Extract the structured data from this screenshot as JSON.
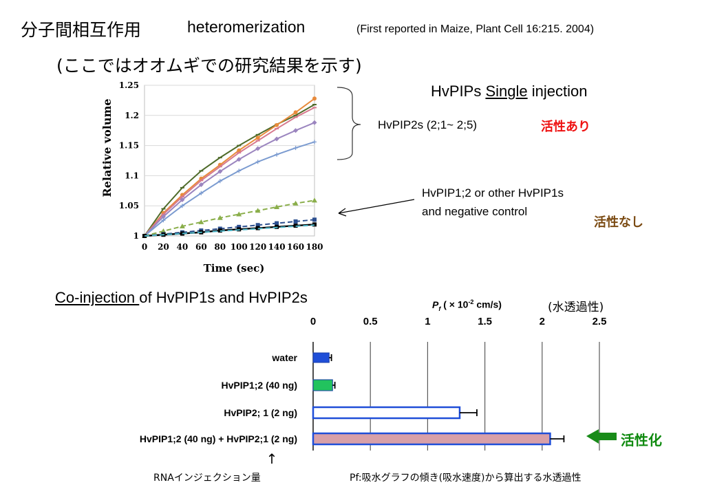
{
  "header": {
    "title_ja": "分子間相互作用",
    "title_en": "heteromerization",
    "reference": "(First reported in Maize, Plant Cell 16:215. 2004)",
    "subtitle": "(ここではオオムギでの研究結果を示す)"
  },
  "annotations": {
    "single_prefix": "HvPIPs ",
    "single_underlined": "Single",
    "single_suffix": " injection",
    "pip2_group": "HvPIP2s (2;1~ 2;5)",
    "active": "活性あり",
    "pip1_line1": "HvPIP1;2  or  other HvPIP1s",
    "pip1_line2": "and negative control",
    "inactive": "活性なし",
    "co_underlined": "Co-injection ",
    "co_suffix": "of HvPIP1s and HvPIP2s",
    "pf_label": "P",
    "pf_sub": "f",
    "pf_unit": "( × 10",
    "pf_exp": "-2",
    "pf_unit_end": " cm/s)",
    "pf_unit_ja": "(水透過性)",
    "activation": "活性化",
    "rna_note": "RNAインジェクション量",
    "pf_note": "Pf:吸水グラフの傾き(吸水速度)から算出する水透過性",
    "up_arrow": "↑"
  },
  "colors": {
    "dark_green": "#4f6b2a",
    "orange": "#e88b3c",
    "pink": "#d77a8e",
    "purple": "#9b85bf",
    "light_blue": "#7b9bd0",
    "olive_dash": "#8aae4a",
    "navy_dash": "#2c4f8f",
    "black": "#000000",
    "cyan_dash": "#4db6c8",
    "bar_blue": "#1f4ed8",
    "bar_green": "#22c35e",
    "bar_pink": "#d8a0a8",
    "arrow_green": "#198b19"
  },
  "chart_data": [
    {
      "type": "line",
      "xlabel": "Time (sec)",
      "ylabel": "Relative volume",
      "x": [
        0,
        20,
        40,
        60,
        80,
        100,
        120,
        140,
        160,
        180
      ],
      "xlim": [
        0,
        180
      ],
      "ylim": [
        1,
        1.25
      ],
      "x_ticks": [
        "0",
        "20",
        "40",
        "60",
        "80",
        "100",
        "120",
        "140",
        "160",
        "180"
      ],
      "y_ticks": [
        "1",
        "1.05",
        "1.1",
        "1.15",
        "1.2",
        "1.25"
      ],
      "y_tick_values": [
        1,
        1.05,
        1.1,
        1.15,
        1.2,
        1.25
      ],
      "series": [
        {
          "color_key": "dark_green",
          "marker": "dash",
          "style": "solid",
          "values": [
            1.0,
            1.045,
            1.08,
            1.108,
            1.13,
            1.15,
            1.168,
            1.185,
            1.2,
            1.218
          ]
        },
        {
          "color_key": "orange",
          "marker": "circle",
          "style": "solid",
          "values": [
            1.0,
            1.038,
            1.068,
            1.095,
            1.118,
            1.142,
            1.163,
            1.184,
            1.205,
            1.228
          ]
        },
        {
          "color_key": "pink",
          "marker": "dash",
          "style": "solid",
          "values": [
            1.0,
            1.036,
            1.065,
            1.092,
            1.115,
            1.138,
            1.158,
            1.178,
            1.197,
            1.213
          ]
        },
        {
          "color_key": "purple",
          "marker": "diamond",
          "style": "solid",
          "values": [
            1.0,
            1.032,
            1.06,
            1.085,
            1.107,
            1.127,
            1.145,
            1.161,
            1.175,
            1.188
          ]
        },
        {
          "color_key": "light_blue",
          "marker": "plus",
          "style": "solid",
          "values": [
            1.0,
            1.026,
            1.05,
            1.071,
            1.091,
            1.108,
            1.123,
            1.135,
            1.146,
            1.156
          ]
        },
        {
          "color_key": "olive_dash",
          "marker": "triangle",
          "style": "dashed",
          "values": [
            1.0,
            1.008,
            1.016,
            1.023,
            1.03,
            1.036,
            1.042,
            1.048,
            1.054,
            1.059
          ]
        },
        {
          "color_key": "navy_dash",
          "marker": "square",
          "style": "dashed",
          "values": [
            1.0,
            1.003,
            1.006,
            1.009,
            1.012,
            1.015,
            1.018,
            1.021,
            1.024,
            1.027
          ]
        },
        {
          "color_key": "black",
          "marker": "square",
          "style": "solid",
          "values": [
            1.0,
            1.002,
            1.004,
            1.006,
            1.009,
            1.011,
            1.013,
            1.015,
            1.017,
            1.019
          ]
        },
        {
          "color_key": "cyan_dash",
          "marker": "none",
          "style": "dashed",
          "values": [
            1.0,
            1.002,
            1.004,
            1.006,
            1.008,
            1.01,
            1.012,
            1.014,
            1.016,
            1.018
          ]
        }
      ]
    },
    {
      "type": "bar",
      "orientation": "horizontal",
      "categories": [
        "water",
        "HvPIP1;2 (40 ng)",
        "HvPIP2; 1 (2 ng)",
        "HvPIP1;2 (40 ng) + HvPIP2;1 (2 ng)"
      ],
      "values": [
        0.14,
        0.17,
        1.28,
        2.07
      ],
      "errors": [
        0.02,
        0.02,
        0.15,
        0.12
      ],
      "bar_color_keys": [
        "bar_blue",
        "bar_green",
        "white",
        "bar_pink"
      ],
      "xlim": [
        0,
        2.5
      ],
      "x_ticks": [
        "0",
        "0.5",
        "1",
        "1.5",
        "2",
        "2.5"
      ],
      "x_tick_values": [
        0,
        0.5,
        1,
        1.5,
        2,
        2.5
      ]
    }
  ]
}
